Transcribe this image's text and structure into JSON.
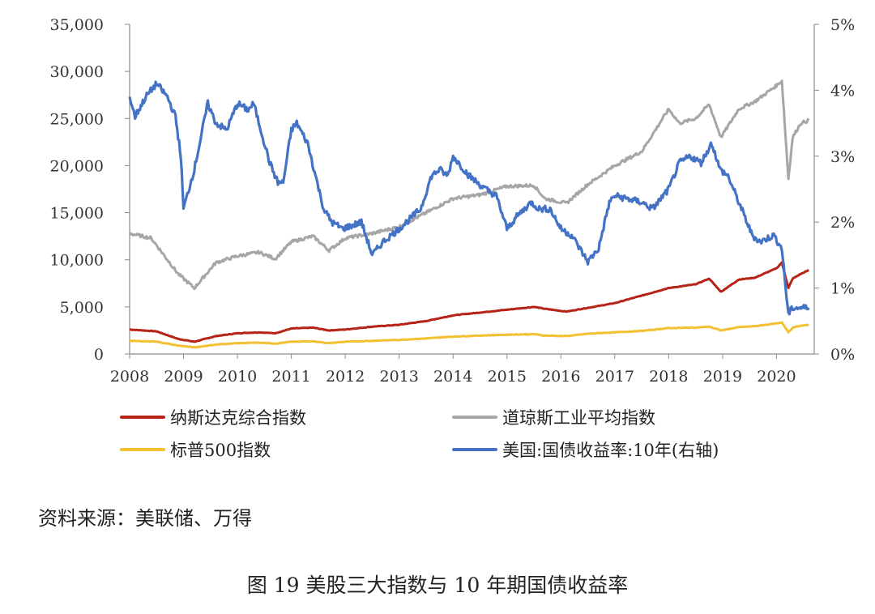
{
  "chart_data": {
    "type": "line",
    "title": "",
    "x_ticks": [
      "2008",
      "2009",
      "2010",
      "2011",
      "2012",
      "2013",
      "2014",
      "2015",
      "2016",
      "2017",
      "2018",
      "2019",
      "2020"
    ],
    "x_range": [
      2008.0,
      2020.7
    ],
    "y_left": {
      "range": [
        0,
        35000
      ],
      "ticks": [
        "0",
        "5,000",
        "10,000",
        "15,000",
        "20,000",
        "25,000",
        "30,000",
        "35,000"
      ]
    },
    "y_right": {
      "range": [
        0,
        5
      ],
      "unit": "%",
      "ticks": [
        "0%",
        "1%",
        "2%",
        "3%",
        "4%",
        "5%"
      ]
    },
    "grid": false,
    "legend_position": "bottom",
    "series": [
      {
        "name": "纳斯达克综合指数",
        "axis": "left",
        "color": "#b82317",
        "x": [
          2008.0,
          2008.5,
          2008.9,
          2009.2,
          2009.6,
          2010.0,
          2010.4,
          2010.7,
          2011.0,
          2011.4,
          2011.7,
          2012.0,
          2012.5,
          2013.0,
          2013.5,
          2014.0,
          2014.5,
          2015.0,
          2015.5,
          2015.7,
          2016.1,
          2016.5,
          2017.0,
          2017.5,
          2018.0,
          2018.5,
          2018.75,
          2018.97,
          2019.3,
          2019.6,
          2020.0,
          2020.1,
          2020.22,
          2020.3,
          2020.45,
          2020.6
        ],
        "y": [
          2600,
          2400,
          1600,
          1300,
          1900,
          2200,
          2300,
          2200,
          2700,
          2800,
          2500,
          2600,
          2900,
          3100,
          3500,
          4100,
          4400,
          4700,
          5000,
          4800,
          4500,
          4900,
          5400,
          6200,
          7000,
          7400,
          8000,
          6600,
          7900,
          8100,
          9100,
          9700,
          7000,
          8000,
          8500,
          8900
        ]
      },
      {
        "name": "道琼斯工业平均指数",
        "axis": "left",
        "color": "#a6a6a6",
        "x": [
          2008.0,
          2008.4,
          2008.9,
          2009.2,
          2009.6,
          2010.0,
          2010.4,
          2010.7,
          2011.0,
          2011.4,
          2011.7,
          2012.0,
          2012.5,
          2013.0,
          2013.5,
          2014.0,
          2014.5,
          2015.0,
          2015.5,
          2015.7,
          2016.1,
          2016.5,
          2017.0,
          2017.5,
          2018.0,
          2018.2,
          2018.5,
          2018.75,
          2018.97,
          2019.3,
          2019.6,
          2020.0,
          2020.1,
          2020.22,
          2020.3,
          2020.45,
          2020.6
        ],
        "y": [
          12800,
          12300,
          8500,
          7000,
          9700,
          10400,
          10800,
          10100,
          11900,
          12500,
          11000,
          12300,
          12800,
          13500,
          15000,
          16500,
          16900,
          17800,
          17900,
          16500,
          16000,
          18000,
          20000,
          21500,
          26000,
          24500,
          25000,
          26500,
          23000,
          26000,
          26800,
          28500,
          29000,
          18600,
          23000,
          24500,
          24800
        ]
      },
      {
        "name": "标普500指数",
        "axis": "left",
        "color": "#f2c133",
        "x": [
          2008.0,
          2008.5,
          2008.9,
          2009.2,
          2009.6,
          2010.0,
          2010.4,
          2010.7,
          2011.0,
          2011.4,
          2011.7,
          2012.0,
          2012.5,
          2013.0,
          2013.5,
          2014.0,
          2014.5,
          2015.0,
          2015.5,
          2015.7,
          2016.1,
          2016.5,
          2017.0,
          2017.5,
          2018.0,
          2018.5,
          2018.75,
          2018.97,
          2019.3,
          2019.6,
          2020.0,
          2020.1,
          2020.22,
          2020.3,
          2020.45,
          2020.6
        ],
        "y": [
          1400,
          1300,
          900,
          700,
          1000,
          1150,
          1200,
          1100,
          1300,
          1350,
          1150,
          1300,
          1400,
          1500,
          1650,
          1850,
          1950,
          2050,
          2100,
          1950,
          1900,
          2150,
          2300,
          2450,
          2750,
          2800,
          2900,
          2500,
          2850,
          2950,
          3250,
          3350,
          2300,
          2800,
          3000,
          3100
        ]
      },
      {
        "name": "美国:国债收益率:10年(右轴)",
        "axis": "right",
        "color": "#4472c4",
        "x": [
          2008.0,
          2008.1,
          2008.3,
          2008.5,
          2008.7,
          2008.85,
          2008.95,
          2009.0,
          2009.2,
          2009.45,
          2009.6,
          2009.8,
          2010.0,
          2010.2,
          2010.3,
          2010.6,
          2010.75,
          2010.85,
          2011.0,
          2011.1,
          2011.3,
          2011.6,
          2011.75,
          2011.95,
          2012.3,
          2012.5,
          2012.7,
          2013.0,
          2013.4,
          2013.6,
          2013.75,
          2013.9,
          2014.0,
          2014.3,
          2014.6,
          2014.8,
          2015.0,
          2015.2,
          2015.45,
          2015.6,
          2015.8,
          2016.0,
          2016.2,
          2016.5,
          2016.7,
          2016.9,
          2017.0,
          2017.5,
          2017.7,
          2018.0,
          2018.2,
          2018.4,
          2018.6,
          2018.8,
          2018.95,
          2019.1,
          2019.4,
          2019.55,
          2019.7,
          2019.95,
          2020.1,
          2020.17,
          2020.22,
          2020.3,
          2020.45,
          2020.6
        ],
        "y": [
          3.9,
          3.6,
          3.9,
          4.1,
          3.9,
          3.6,
          3.0,
          2.2,
          2.8,
          3.8,
          3.5,
          3.4,
          3.8,
          3.7,
          3.8,
          2.9,
          2.6,
          2.6,
          3.4,
          3.5,
          3.2,
          2.2,
          2.0,
          1.9,
          2.0,
          1.5,
          1.7,
          1.9,
          2.2,
          2.7,
          2.8,
          2.7,
          3.0,
          2.7,
          2.5,
          2.4,
          1.9,
          2.1,
          2.3,
          2.2,
          2.2,
          1.9,
          1.8,
          1.4,
          1.6,
          2.3,
          2.4,
          2.3,
          2.2,
          2.5,
          2.9,
          3.0,
          2.9,
          3.2,
          2.8,
          2.7,
          2.1,
          1.8,
          1.7,
          1.8,
          1.6,
          1.0,
          0.6,
          0.7,
          0.7,
          0.7
        ]
      }
    ]
  },
  "legend": [
    {
      "label": "纳斯达克综合指数",
      "color": "#b82317"
    },
    {
      "label": "道琼斯工业平均指数",
      "color": "#a6a6a6"
    },
    {
      "label": "标普500指数",
      "color": "#f2c133"
    },
    {
      "label": "美国:国债收益率:10年(右轴)",
      "color": "#4472c4"
    }
  ],
  "source": "资料来源：美联储、万得",
  "caption": "图 19  美股三大指数与 10 年期国债收益率"
}
